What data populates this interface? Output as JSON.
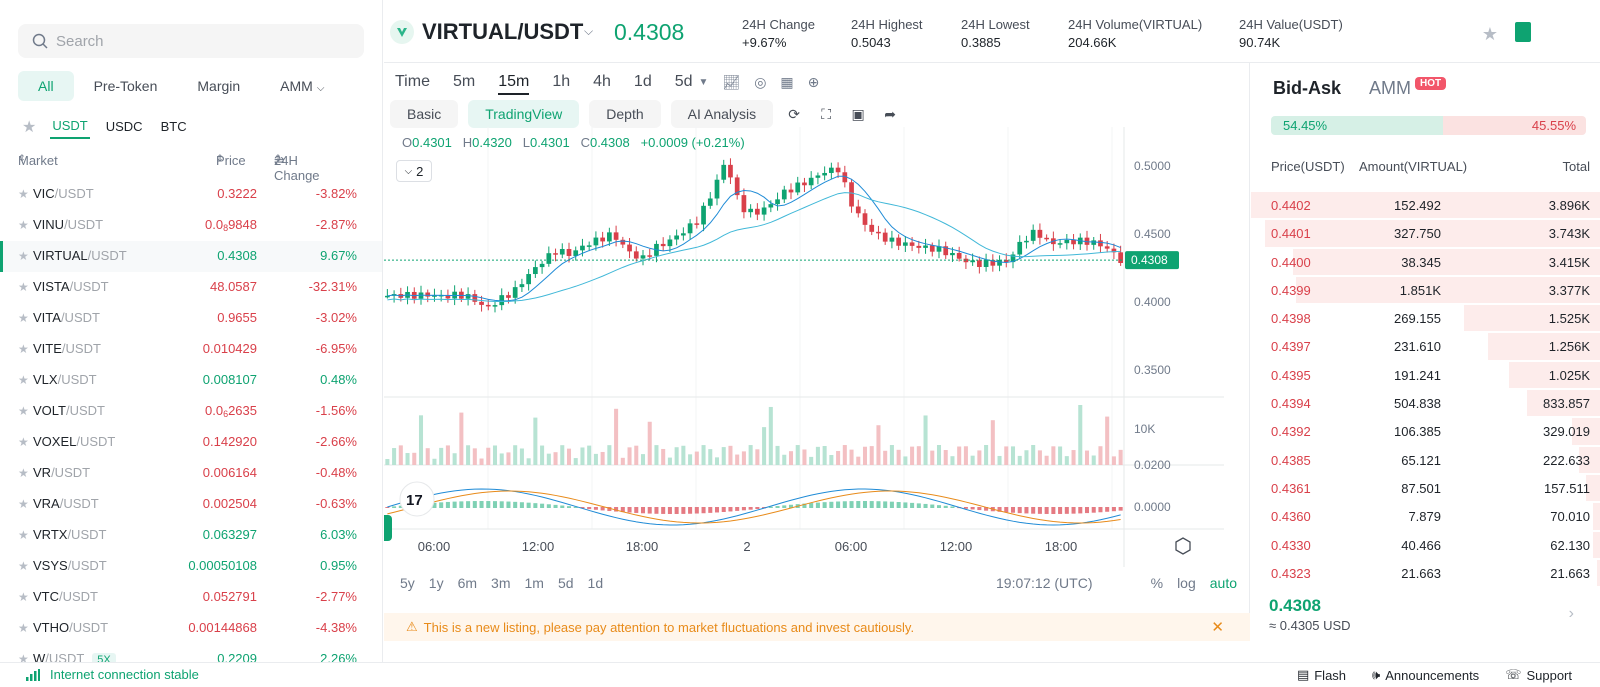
{
  "left": {
    "search_placeholder": "Search",
    "tabs": [
      "All",
      "Pre-Token",
      "Margin",
      "AMM"
    ],
    "quotes": [
      "USDT",
      "USDC",
      "BTC"
    ],
    "columns": {
      "market": "Market",
      "price": "Price",
      "change": "24H Change"
    },
    "markets": [
      {
        "base": "VIC",
        "quote": "/USDT",
        "price": "0.3222",
        "change": "-3.82%",
        "dir": "down"
      },
      {
        "base": "VINU",
        "quote": "/USDT",
        "price_pre": "0.0",
        "price_sub": "8",
        "price_post": "9848",
        "change": "-2.87%",
        "dir": "down"
      },
      {
        "base": "VIRTUAL",
        "quote": "/USDT",
        "price": "0.4308",
        "change": "9.67%",
        "dir": "up",
        "selected": true
      },
      {
        "base": "VISTA",
        "quote": "/USDT",
        "price": "48.0587",
        "change": "-32.31%",
        "dir": "down"
      },
      {
        "base": "VITA",
        "quote": "/USDT",
        "price": "0.9655",
        "change": "-3.02%",
        "dir": "down"
      },
      {
        "base": "VITE",
        "quote": "/USDT",
        "price": "0.010429",
        "change": "-6.95%",
        "dir": "down"
      },
      {
        "base": "VLX",
        "quote": "/USDT",
        "price": "0.008107",
        "change": "0.48%",
        "dir": "up"
      },
      {
        "base": "VOLT",
        "quote": "/USDT",
        "price_pre": "0.0",
        "price_sub": "6",
        "price_post": "2635",
        "change": "-1.56%",
        "dir": "down"
      },
      {
        "base": "VOXEL",
        "quote": "/USDT",
        "price": "0.142920",
        "change": "-2.66%",
        "dir": "down"
      },
      {
        "base": "VR",
        "quote": "/USDT",
        "price": "0.006164",
        "change": "-0.48%",
        "dir": "down"
      },
      {
        "base": "VRA",
        "quote": "/USDT",
        "price": "0.002504",
        "change": "-0.63%",
        "dir": "down"
      },
      {
        "base": "VRTX",
        "quote": "/USDT",
        "price": "0.063297",
        "change": "6.03%",
        "dir": "up"
      },
      {
        "base": "VSYS",
        "quote": "/USDT",
        "price": "0.00050108",
        "change": "0.95%",
        "dir": "up"
      },
      {
        "base": "VTC",
        "quote": "/USDT",
        "price": "0.052791",
        "change": "-2.77%",
        "dir": "down"
      },
      {
        "base": "VTHO",
        "quote": "/USDT",
        "price": "0.00144868",
        "change": "-4.38%",
        "dir": "down"
      },
      {
        "base": "W",
        "quote": "/USDT",
        "lev": "5X",
        "price": "0.2209",
        "change": "2.26%",
        "dir": "up"
      }
    ]
  },
  "header": {
    "symbol": "VIRTUAL/USDT",
    "last_price": "0.4308",
    "stats": [
      {
        "label": "24H Change",
        "value": "+9.67%",
        "color": "#0ea371"
      },
      {
        "label": "24H Highest",
        "value": "0.5043"
      },
      {
        "label": "24H Lowest",
        "value": "0.3885"
      },
      {
        "label": "24H Volume(VIRTUAL)",
        "value": "204.66K"
      },
      {
        "label": "24H Value(USDT)",
        "value": "90.74K"
      }
    ]
  },
  "chart": {
    "timeframes": [
      "Time",
      "5m",
      "15m",
      "1h",
      "4h",
      "1d",
      "5d"
    ],
    "active_timeframe": "15m",
    "views": [
      "Basic",
      "TradingView",
      "Depth",
      "AI Analysis"
    ],
    "active_view": "TradingView",
    "ohlc": {
      "o": "0.4301",
      "h": "0.4320",
      "l": "0.4301",
      "c": "0.4308",
      "delta": "+0.0009 (+0.21%)"
    },
    "indicator_toggle": "2",
    "price_axis": [
      "0.5000",
      "0.4500",
      "0.4000",
      "0.3500"
    ],
    "last_price_label": "0.4308",
    "volume_axis": "10K",
    "macd_axis": [
      "0.0200",
      "0.0000"
    ],
    "time_axis": [
      "06:00",
      "12:00",
      "18:00",
      "2",
      "06:00",
      "12:00",
      "18:00"
    ],
    "ranges": [
      "5y",
      "1y",
      "6m",
      "3m",
      "1m",
      "5d",
      "1d"
    ],
    "clock": "19:07:12 (UTC)",
    "scale_options": [
      "%",
      "log",
      "auto"
    ],
    "notice": "This is a new listing, please pay attention to market fluctuations and invest cautiously."
  },
  "chart_data": {
    "type": "candlestick",
    "ylim": [
      0.33,
      0.52
    ],
    "y_ticks": [
      0.35,
      0.4,
      0.45,
      0.5
    ],
    "close_path": [
      0.4045,
      0.405,
      0.4048,
      0.4052,
      0.404,
      0.4055,
      0.403,
      0.395,
      0.402,
      0.408,
      0.42,
      0.43,
      0.438,
      0.435,
      0.442,
      0.446,
      0.45,
      0.438,
      0.431,
      0.44,
      0.445,
      0.452,
      0.46,
      0.48,
      0.5043,
      0.47,
      0.465,
      0.47,
      0.48,
      0.485,
      0.49,
      0.496,
      0.498,
      0.47,
      0.455,
      0.448,
      0.444,
      0.442,
      0.44,
      0.439,
      0.435,
      0.43,
      0.428,
      0.429,
      0.43,
      0.445,
      0.452,
      0.443,
      0.444,
      0.445,
      0.444,
      0.44,
      0.4308
    ]
  },
  "book": {
    "tabs": [
      "Bid-Ask",
      "AMM"
    ],
    "hot": "HOT",
    "buy_ratio": "54.45%",
    "sell_ratio": "45.55%",
    "buy_fraction": 0.5445,
    "columns": {
      "price": "Price(USDT)",
      "amount": "Amount(VIRTUAL)",
      "total": "Total"
    },
    "asks": [
      {
        "price": "0.4402",
        "amount": "152.492",
        "total": "3.896K",
        "depth": 1.0
      },
      {
        "price": "0.4401",
        "amount": "327.750",
        "total": "3.743K",
        "depth": 0.96
      },
      {
        "price": "0.4400",
        "amount": "38.345",
        "total": "3.415K",
        "depth": 0.88
      },
      {
        "price": "0.4399",
        "amount": "1.851K",
        "total": "3.377K",
        "depth": 0.87
      },
      {
        "price": "0.4398",
        "amount": "269.155",
        "total": "1.525K",
        "depth": 0.39
      },
      {
        "price": "0.4397",
        "amount": "231.610",
        "total": "1.256K",
        "depth": 0.32
      },
      {
        "price": "0.4395",
        "amount": "191.241",
        "total": "1.025K",
        "depth": 0.26
      },
      {
        "price": "0.4394",
        "amount": "504.838",
        "total": "833.857",
        "depth": 0.21
      },
      {
        "price": "0.4392",
        "amount": "106.385",
        "total": "329.019",
        "depth": 0.08
      },
      {
        "price": "0.4385",
        "amount": "65.121",
        "total": "222.633",
        "depth": 0.06
      },
      {
        "price": "0.4361",
        "amount": "87.501",
        "total": "157.511",
        "depth": 0.04
      },
      {
        "price": "0.4360",
        "amount": "7.879",
        "total": "70.010",
        "depth": 0.02
      },
      {
        "price": "0.4330",
        "amount": "40.466",
        "total": "62.130",
        "depth": 0.02
      },
      {
        "price": "0.4323",
        "amount": "21.663",
        "total": "21.663",
        "depth": 0.01
      }
    ],
    "mid_price": "0.4308",
    "mid_approx": "≈ 0.4305  USD"
  },
  "footer": {
    "connection": "Internet connection stable",
    "links": [
      "Flash",
      "Announcements",
      "Support"
    ]
  },
  "colors": {
    "up": "#0ea371",
    "down": "#d9404a",
    "accent": "#0ea371",
    "warning": "#e88b1a"
  }
}
